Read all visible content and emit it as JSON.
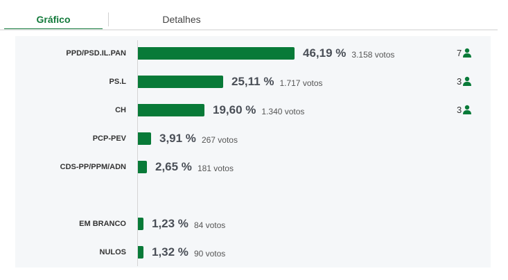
{
  "tabs": [
    {
      "label": "Gráfico"
    },
    {
      "label": "Detalhes"
    }
  ],
  "accent_color": "#087a38",
  "results": [
    {
      "party": "PPD/PSD.IL.PAN",
      "percent": "46,19 %",
      "votes": "3.158 votos",
      "seats": "7",
      "value": 46.19
    },
    {
      "party": "PS.L",
      "percent": "25,11 %",
      "votes": "1.717 votos",
      "seats": "3",
      "value": 25.11
    },
    {
      "party": "CH",
      "percent": "19,60 %",
      "votes": "1.340 votos",
      "seats": "3",
      "value": 19.6
    },
    {
      "party": "PCP-PEV",
      "percent": "3,91 %",
      "votes": "267 votos",
      "value": 3.91
    },
    {
      "party": "CDS-PP/PPM/ADN",
      "percent": "2,65 %",
      "votes": "181 votos",
      "value": 2.65
    },
    {
      "party": "EM BRANCO",
      "percent": "1,23 %",
      "votes": "84 votos",
      "value": 1.23
    },
    {
      "party": "NULOS",
      "percent": "1,32 %",
      "votes": "90 votos",
      "value": 1.32
    }
  ],
  "seat_icon": "person-icon"
}
